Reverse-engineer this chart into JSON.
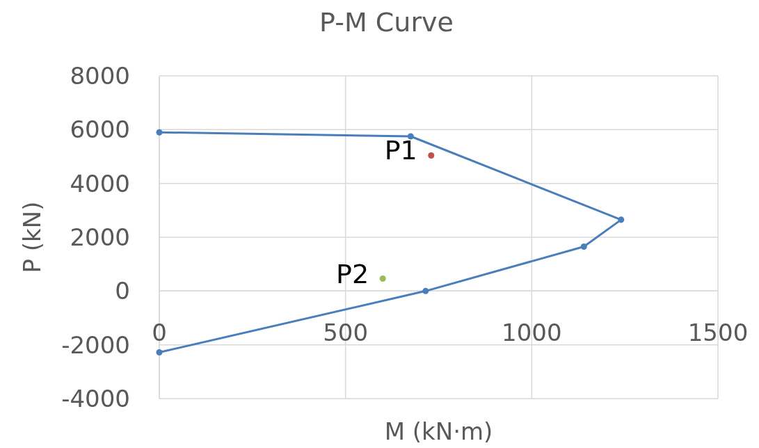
{
  "chart_data": {
    "type": "scatter",
    "title": "P-M Curve",
    "xlabel": "M (kN·m)",
    "ylabel": "P (kN)",
    "series": [
      {
        "type": "line",
        "color": "#4a7ebb",
        "x": [
          0,
          675,
          1240,
          1140,
          715,
          0
        ],
        "values": [
          5900,
          5750,
          2650,
          1650,
          0,
          -2280
        ]
      },
      {
        "name": "P1",
        "color": "#c0504d",
        "x": [
          730
        ],
        "values": [
          5040
        ]
      },
      {
        "name": "P2",
        "color": "#9bbb59",
        "x": [
          600
        ],
        "values": [
          460
        ]
      }
    ],
    "xlim": [
      0,
      1500
    ],
    "xticks": [
      0,
      500,
      1000,
      1500
    ],
    "ylim": [
      -4000,
      8000
    ],
    "yticks": [
      -4000,
      -2000,
      0,
      2000,
      4000,
      6000,
      8000
    ],
    "grid": true,
    "marker": "circle"
  }
}
